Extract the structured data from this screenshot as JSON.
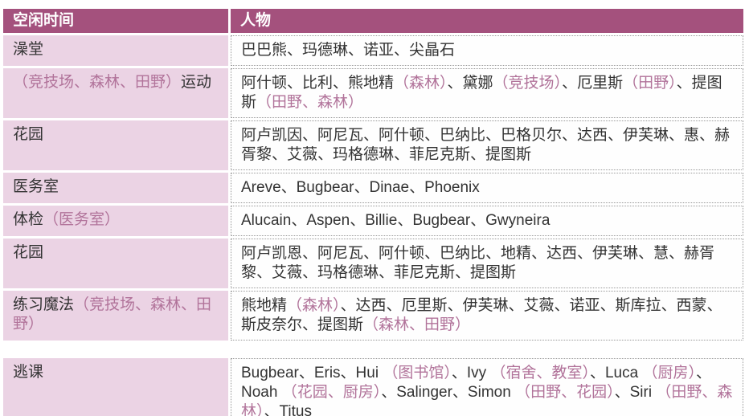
{
  "colors": {
    "header_bg": "#a4517d",
    "header_text": "#ffffff",
    "row_label_bg": "#ebd3e4",
    "body_text": "#333333",
    "accent_text": "#b1739a",
    "cell_border": "#999999",
    "cell_bg": "#fefefe",
    "page_bg": "#ffffff"
  },
  "table": {
    "header": {
      "activity": "空闲时间",
      "people": "人物"
    },
    "rows": [
      {
        "gap_before": false,
        "activity": [
          {
            "t": "澡堂",
            "a": false
          }
        ],
        "people": [
          {
            "t": "巴巴熊、玛德琳、诺亚、尖晶石",
            "a": false
          }
        ]
      },
      {
        "gap_before": false,
        "activity": [
          {
            "t": "（竞技场、森林、田野）",
            "a": true
          },
          {
            "t": "运动",
            "a": false
          }
        ],
        "people": [
          {
            "t": "阿什顿、比利、熊地精",
            "a": false
          },
          {
            "t": "（森林）",
            "a": true
          },
          {
            "t": "、黛娜",
            "a": false
          },
          {
            "t": "（竞技场）",
            "a": true
          },
          {
            "t": "、厄里斯",
            "a": false
          },
          {
            "t": "（田野）",
            "a": true
          },
          {
            "t": "、提图斯",
            "a": false
          },
          {
            "t": "（田野、森林）",
            "a": true
          }
        ]
      },
      {
        "gap_before": false,
        "activity": [
          {
            "t": "花园",
            "a": false
          }
        ],
        "people": [
          {
            "t": "阿卢凯因、阿尼瓦、阿什顿、巴纳比、巴格贝尔、达西、伊芙琳、惠、赫胥黎、艾薇、玛格德琳、菲尼克斯、提图斯",
            "a": false
          }
        ]
      },
      {
        "gap_before": false,
        "activity": [
          {
            "t": "医务室",
            "a": false
          }
        ],
        "people": [
          {
            "t": "Areve、Bugbear、Dinae、Phoenix",
            "a": false
          }
        ]
      },
      {
        "gap_before": false,
        "activity": [
          {
            "t": "体检",
            "a": false
          },
          {
            "t": "（医务室）",
            "a": true
          }
        ],
        "people": [
          {
            "t": "Alucain、Aspen、Billie、Bugbear、Gwyneira",
            "a": false
          }
        ]
      },
      {
        "gap_before": false,
        "activity": [
          {
            "t": "花园",
            "a": false
          }
        ],
        "people": [
          {
            "t": "阿卢凯恩、阿尼瓦、阿什顿、巴纳比、地精、达西、伊芙琳、慧、赫胥黎、艾薇、玛格德琳、菲尼克斯、提图斯",
            "a": false
          }
        ]
      },
      {
        "gap_before": false,
        "activity": [
          {
            "t": "练习魔法",
            "a": false
          },
          {
            "t": "（竞技场、森林、田野）",
            "a": true
          }
        ],
        "people": [
          {
            "t": "熊地精",
            "a": false
          },
          {
            "t": "（森林）",
            "a": true
          },
          {
            "t": "、达西、厄里斯、伊芙琳、艾薇、诺亚、斯库拉、西蒙、斯皮奈尔、提图斯",
            "a": false
          },
          {
            "t": "（森林、田野）",
            "a": true
          }
        ]
      },
      {
        "gap_before": true,
        "activity": [
          {
            "t": "逃课",
            "a": false
          }
        ],
        "people": [
          {
            "t": "Bugbear、Eris、Hui ",
            "a": false
          },
          {
            "t": "（图书馆）",
            "a": true
          },
          {
            "t": "、Ivy ",
            "a": false
          },
          {
            "t": "（宿舍、教室）",
            "a": true
          },
          {
            "t": "、Luca ",
            "a": false
          },
          {
            "t": "（厨房）",
            "a": true
          },
          {
            "t": "、Noah ",
            "a": false
          },
          {
            "t": "（花园、厨房）",
            "a": true
          },
          {
            "t": "、Salinger、Simon ",
            "a": false
          },
          {
            "t": "（田野、花园）",
            "a": true
          },
          {
            "t": "、Siri ",
            "a": false
          },
          {
            "t": "（田野、森林）",
            "a": true
          },
          {
            "t": "、Titus",
            "a": false
          }
        ]
      }
    ]
  }
}
